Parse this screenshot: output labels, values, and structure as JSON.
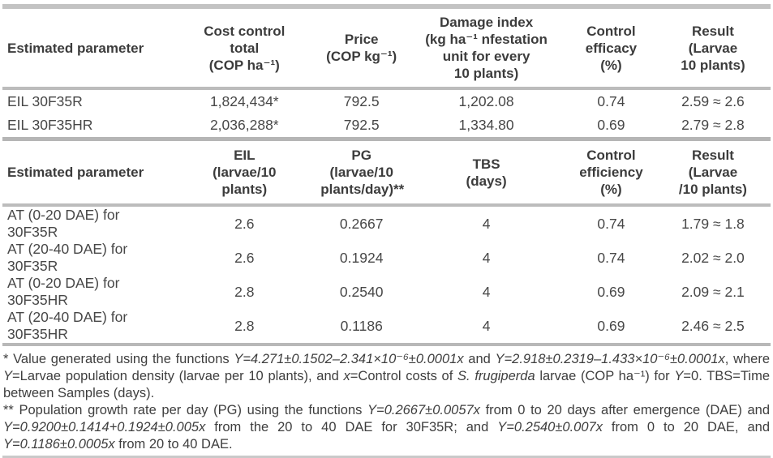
{
  "page": {
    "background": "#ffffff",
    "text_color": "#3e3e3e",
    "rule_color": "#c3c3c3"
  },
  "table1": {
    "headers": [
      "Estimated parameter",
      "Cost control\ntotal\n(COP ha⁻¹)",
      "Price\n(COP kg⁻¹)",
      "Damage index\n(kg ha⁻¹ nfestation\nunit for every\n10 plants)",
      "Control efficacy\n(%)",
      "Result\n(Larvae\n10 plants)"
    ],
    "rows": [
      {
        "cells": [
          "EIL 30F35R",
          "1,824,434*",
          "792.5",
          "1,202.08",
          "0.74",
          "2.59 ≈ 2.6"
        ]
      },
      {
        "cells": [
          "EIL 30F35HR",
          "2,036,288*",
          "792.5",
          "1,334.80",
          "0.69",
          "2.79 ≈ 2.8"
        ]
      }
    ]
  },
  "table2": {
    "headers": [
      "Estimated parameter",
      "EIL\n(larvae/10\nplants)",
      "PG\n(larvae/10\nplants/day)**",
      "TBS\n(days)",
      "Control\nefficiency (%)",
      "Result\n(Larvae\n/10 plants)"
    ],
    "rows": [
      {
        "cells": [
          "AT (0-20 DAE) for 30F35R",
          "2.6",
          "0.2667",
          "4",
          "0.74",
          "1.79 ≈ 1.8"
        ]
      },
      {
        "cells": [
          "AT (20-40 DAE) for 30F35R",
          "2.6",
          "0.1924",
          "4",
          "0.74",
          "2.02 ≈ 2.0"
        ]
      },
      {
        "cells": [
          "AT (0-20 DAE) for 30F35HR",
          "2.8",
          "0.2540",
          "4",
          "0.69",
          "2.09 ≈ 2.1"
        ]
      },
      {
        "cells": [
          "AT (20-40 DAE) for 30F35HR",
          "2.8",
          "0.1186",
          "4",
          "0.69",
          "2.46 ≈ 2.5"
        ]
      }
    ]
  },
  "footnotes": {
    "note1": {
      "segments": [
        {
          "t": "* Value generated using the functions "
        },
        {
          "t": "Y=4.271±0.1502–2.341×10⁻⁶±0.0001x",
          "i": true
        },
        {
          "t": " and "
        },
        {
          "t": "Y=2.918±0.2319–1.433×10⁻⁶±0.0001x",
          "i": true
        },
        {
          "t": ", where "
        },
        {
          "t": "Y",
          "i": true
        },
        {
          "t": "=Larvae population density (larvae per 10 plants), and "
        },
        {
          "t": "x",
          "i": true
        },
        {
          "t": "=Control costs of "
        },
        {
          "t": "S. frugiperda",
          "i": true
        },
        {
          "t": " larvae (COP ha⁻¹) for "
        },
        {
          "t": "Y",
          "i": true
        },
        {
          "t": "=0. TBS=Time between Samples (days)."
        }
      ]
    },
    "note2": {
      "segments": [
        {
          "t": "** Population growth rate per day (PG) using the functions "
        },
        {
          "t": "Y=0.2667±0.0057x",
          "i": true
        },
        {
          "t": " from 0 to 20 days after emergence (DAE) and "
        },
        {
          "t": "Y=0.9200±0.1414+0.1924±0.005x",
          "i": true
        },
        {
          "t": " from the 20 to 40 DAE for 30F35R; and "
        },
        {
          "t": "Y=0.2540±0.007x",
          "i": true
        },
        {
          "t": " from 0 to 20 DAE, and "
        },
        {
          "t": "Y=0.1186±0.0005x",
          "i": true
        },
        {
          "t": " from 20 to 40 DAE."
        }
      ]
    }
  }
}
